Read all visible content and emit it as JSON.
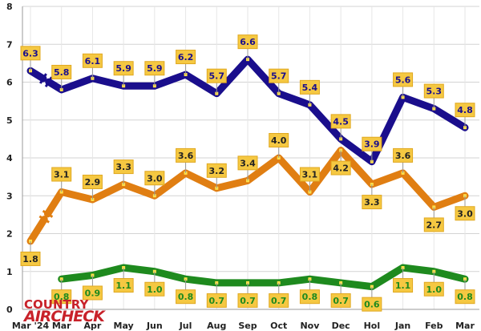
{
  "chart_data": {
    "type": "line",
    "title": "",
    "xlabel": "",
    "ylabel": "",
    "ylim": [
      0,
      8
    ],
    "yticks": [
      "0",
      "1",
      "2",
      "3",
      "4",
      "5",
      "6",
      "7",
      "8"
    ],
    "categories": [
      "Mar '24",
      "Mar",
      "Apr",
      "May",
      "Jun",
      "Jul",
      "Aug",
      "Sep",
      "Oct",
      "Nov",
      "Dec",
      "Hol",
      "Jan",
      "Feb",
      "Mar"
    ],
    "series": [
      {
        "name": "blue",
        "color": "#1a0e8c",
        "values": [
          6.3,
          5.8,
          6.1,
          5.9,
          5.9,
          6.2,
          5.7,
          6.6,
          5.7,
          5.4,
          4.5,
          3.9,
          5.6,
          5.3,
          4.8
        ],
        "labels": [
          "6.3",
          "5.8",
          "6.1",
          "5.9",
          "5.9",
          "6.2",
          "5.7",
          "6.6",
          "5.7",
          "5.4",
          "4.5",
          "3.9",
          "5.6",
          "5.3",
          "4.8"
        ]
      },
      {
        "name": "orange",
        "color": "#e07e12",
        "values": [
          1.8,
          3.1,
          2.9,
          3.3,
          3.0,
          3.6,
          3.2,
          3.4,
          4.0,
          3.1,
          4.2,
          3.3,
          3.6,
          2.7,
          3.0
        ],
        "labels": [
          "1.8",
          "3.1",
          "2.9",
          "3.3",
          "3.0",
          "3.6",
          "3.2",
          "3.4",
          "4.0",
          "3.1",
          "4.2",
          "3.3",
          "3.6",
          "2.7",
          "3.0"
        ]
      },
      {
        "name": "green",
        "color": "#1e8a1e",
        "values": [
          null,
          0.8,
          0.9,
          1.1,
          1.0,
          0.8,
          0.7,
          0.7,
          0.7,
          0.8,
          0.7,
          0.6,
          1.1,
          1.0,
          0.8
        ],
        "labels": [
          null,
          "0.8",
          "0.9",
          "1.1",
          "1.0",
          "0.8",
          "0.7",
          "0.7",
          "0.7",
          "0.8",
          "0.7",
          "0.6",
          "1.1",
          "1.0",
          "0.8"
        ]
      }
    ],
    "break_after_index": 0
  },
  "brand": {
    "top": "COUNTRY",
    "bottom": "AIRCHECK"
  }
}
